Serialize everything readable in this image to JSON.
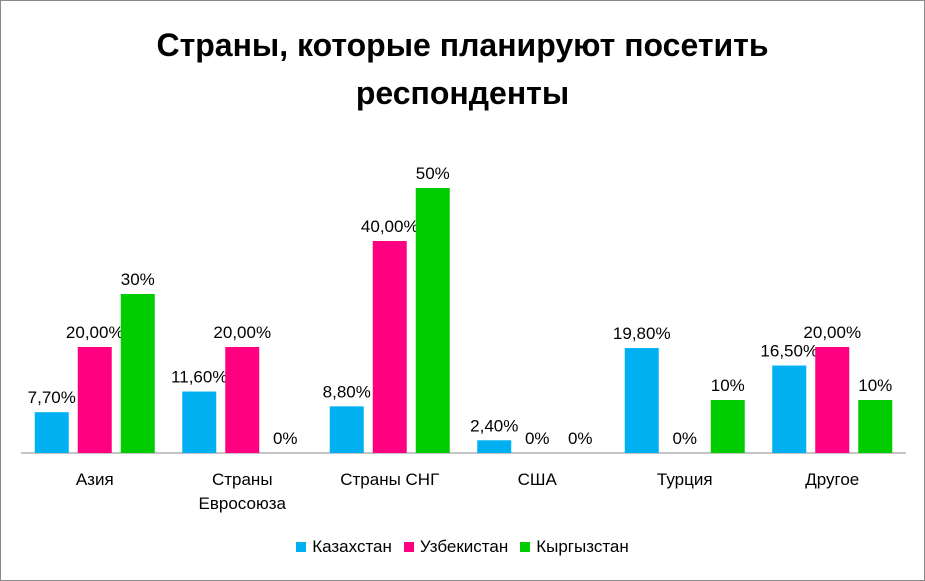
{
  "chart_data": {
    "type": "bar",
    "title_line1": "Страны, которые планируют посетить",
    "title_line2": "респонденты",
    "categories": [
      "Азия",
      "Страны Евросоюза",
      "Страны СНГ",
      "США",
      "Турция",
      "Другое"
    ],
    "category_label_lines": [
      [
        "Азия"
      ],
      [
        "Страны",
        "Евросоюза"
      ],
      [
        "Страны СНГ"
      ],
      [
        "США"
      ],
      [
        "Турция"
      ],
      [
        "Другое"
      ]
    ],
    "series": [
      {
        "name": "Казахстан",
        "color": "#00B0F0",
        "values": [
          7.7,
          11.6,
          8.8,
          2.4,
          19.8,
          16.5
        ],
        "labels": [
          "7,70%",
          "11,60%",
          "8,80%",
          "2,40%",
          "19,80%",
          "16,50%"
        ]
      },
      {
        "name": "Узбекистан",
        "color": "#FF0080",
        "values": [
          20.0,
          20.0,
          40.0,
          0,
          0,
          20.0
        ],
        "labels": [
          "20,00%",
          "20,00%",
          "40,00%",
          "0%",
          "0%",
          "20,00%"
        ]
      },
      {
        "name": "Кыргызстан",
        "color": "#00CC00",
        "values": [
          30,
          0,
          50,
          0,
          10,
          10
        ],
        "labels": [
          "30%",
          "0%",
          "50%",
          "0%",
          "10%",
          "10%"
        ]
      }
    ],
    "ylim": [
      0,
      50
    ],
    "grid": false,
    "legend_position": "bottom"
  }
}
